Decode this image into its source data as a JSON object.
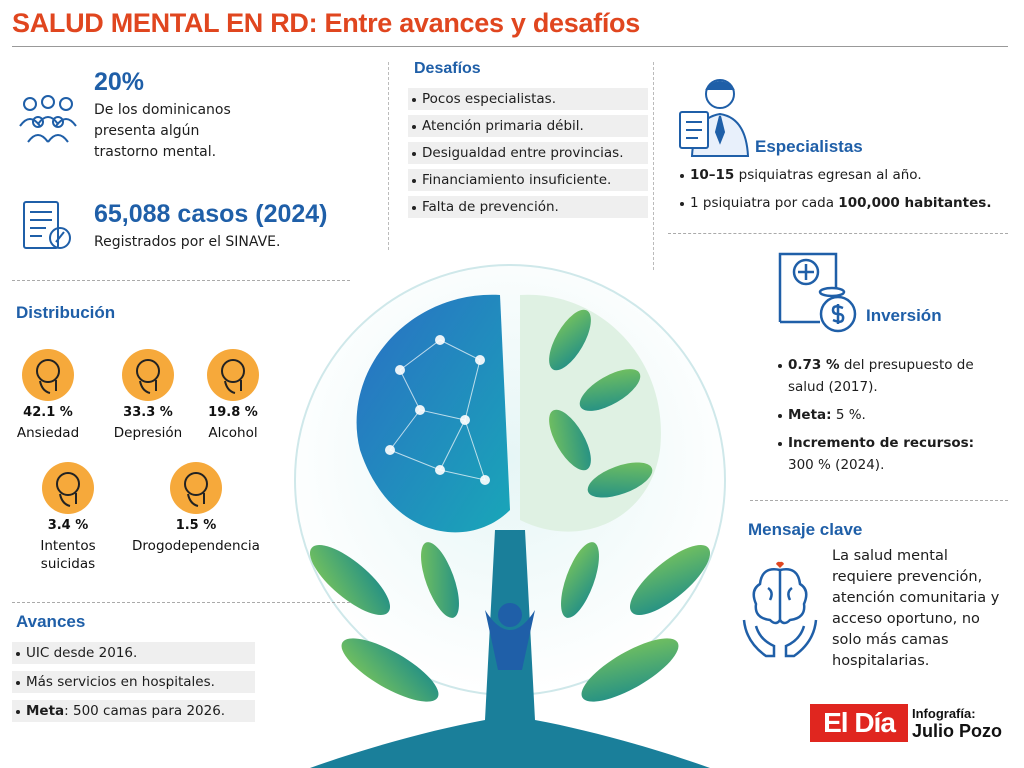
{
  "header": {
    "title": "SALUD MENTAL EN RD: Entre avances y desafíos"
  },
  "prevalence": {
    "value": "20%",
    "text": "De los dominicanos presenta algún trastorno mental."
  },
  "cases": {
    "value": "65,088 casos (2024)",
    "text": "Registrados por el SINAVE."
  },
  "distribution": {
    "title": "Distribución",
    "items": [
      {
        "value": "42.1 %",
        "label": "Ansiedad"
      },
      {
        "value": "33.3 %",
        "label": "Depresión"
      },
      {
        "value": "19.8 %",
        "label": "Alcohol"
      },
      {
        "value": "3.4 %",
        "label": "Intentos suicidas"
      },
      {
        "value": "1.5 %",
        "label": "Drogodependencia"
      }
    ]
  },
  "challenges": {
    "title": "Desafíos",
    "items": [
      {
        "parts": [
          {
            "text": "Pocos especialistas."
          }
        ]
      },
      {
        "parts": [
          {
            "text": "Atención primaria débil."
          }
        ]
      },
      {
        "parts": [
          {
            "text": "Desigualdad entre provincias."
          }
        ]
      },
      {
        "parts": [
          {
            "text": "Financiamiento insuficiente."
          }
        ]
      },
      {
        "parts": [
          {
            "text": "Falta de prevención."
          }
        ]
      }
    ]
  },
  "specialists": {
    "title": "Especialistas",
    "items": [
      {
        "parts": [
          {
            "text": "10–15",
            "bold": true
          },
          {
            "text": " psiquiatras egresan al año."
          }
        ]
      },
      {
        "parts": [
          {
            "text": "1 psiquiatra por cada "
          },
          {
            "text": "100,000 habitantes.",
            "bold": true
          }
        ]
      }
    ]
  },
  "investment": {
    "title": "Inversión",
    "items": [
      {
        "parts": [
          {
            "text": "0.73 %",
            "bold": true
          },
          {
            "text": " del presupuesto de salud (2017)."
          }
        ]
      },
      {
        "parts": [
          {
            "text": "Meta:",
            "bold": true
          },
          {
            "text": " 5 %."
          }
        ]
      },
      {
        "parts": [
          {
            "text": "Incremento de recursos:",
            "bold": true
          },
          {
            "text": " 300 % (2024)."
          }
        ]
      }
    ]
  },
  "key_message": {
    "title": "Mensaje clave",
    "text": "La salud mental requiere prevención, atención comunitaria y acceso oportuno, no solo más camas hospitalarias."
  },
  "progress": {
    "title": "Avances",
    "items": [
      {
        "parts": [
          {
            "text": "UIC desde 2016."
          }
        ]
      },
      {
        "parts": [
          {
            "text": "Más servicios en hospitales."
          }
        ]
      },
      {
        "parts": [
          {
            "text": "Meta",
            "bold": true
          },
          {
            "text": ": 500 camas para 2026."
          }
        ]
      }
    ]
  },
  "footer": {
    "brand": "El Día",
    "credit_label": "Infografía:",
    "credit_name": "Julio Pozo"
  }
}
